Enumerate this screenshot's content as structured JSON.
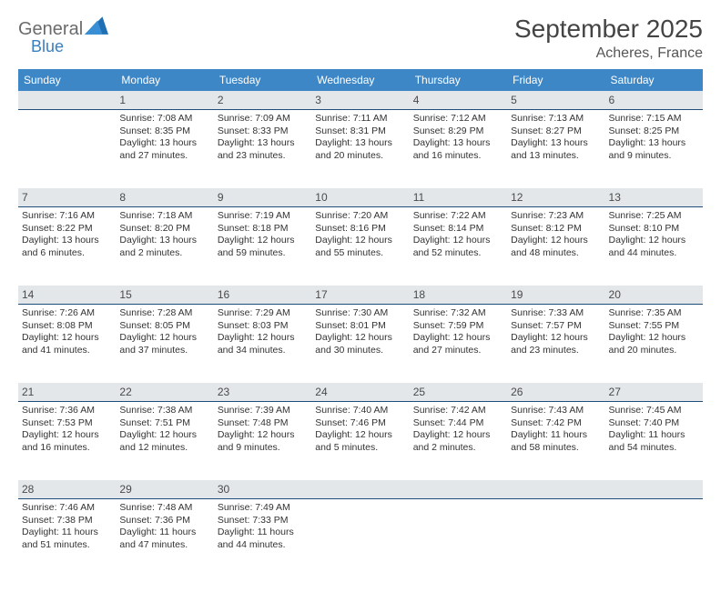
{
  "brand": {
    "word1": "General",
    "word2": "Blue",
    "logo_color": "#1e6fb4"
  },
  "header": {
    "month_title": "September 2025",
    "location": "Acheres, France"
  },
  "colors": {
    "dow_bg": "#3d87c7",
    "dow_text": "#ffffff",
    "daynum_bg": "#e3e7ea",
    "daynum_border": "#1e4e79",
    "text": "#333333"
  },
  "days_of_week": [
    "Sunday",
    "Monday",
    "Tuesday",
    "Wednesday",
    "Thursday",
    "Friday",
    "Saturday"
  ],
  "weeks": [
    [
      {
        "num": "",
        "sunrise": "",
        "sunset": "",
        "daylight": ""
      },
      {
        "num": "1",
        "sunrise": "Sunrise: 7:08 AM",
        "sunset": "Sunset: 8:35 PM",
        "daylight": "Daylight: 13 hours and 27 minutes."
      },
      {
        "num": "2",
        "sunrise": "Sunrise: 7:09 AM",
        "sunset": "Sunset: 8:33 PM",
        "daylight": "Daylight: 13 hours and 23 minutes."
      },
      {
        "num": "3",
        "sunrise": "Sunrise: 7:11 AM",
        "sunset": "Sunset: 8:31 PM",
        "daylight": "Daylight: 13 hours and 20 minutes."
      },
      {
        "num": "4",
        "sunrise": "Sunrise: 7:12 AM",
        "sunset": "Sunset: 8:29 PM",
        "daylight": "Daylight: 13 hours and 16 minutes."
      },
      {
        "num": "5",
        "sunrise": "Sunrise: 7:13 AM",
        "sunset": "Sunset: 8:27 PM",
        "daylight": "Daylight: 13 hours and 13 minutes."
      },
      {
        "num": "6",
        "sunrise": "Sunrise: 7:15 AM",
        "sunset": "Sunset: 8:25 PM",
        "daylight": "Daylight: 13 hours and 9 minutes."
      }
    ],
    [
      {
        "num": "7",
        "sunrise": "Sunrise: 7:16 AM",
        "sunset": "Sunset: 8:22 PM",
        "daylight": "Daylight: 13 hours and 6 minutes."
      },
      {
        "num": "8",
        "sunrise": "Sunrise: 7:18 AM",
        "sunset": "Sunset: 8:20 PM",
        "daylight": "Daylight: 13 hours and 2 minutes."
      },
      {
        "num": "9",
        "sunrise": "Sunrise: 7:19 AM",
        "sunset": "Sunset: 8:18 PM",
        "daylight": "Daylight: 12 hours and 59 minutes."
      },
      {
        "num": "10",
        "sunrise": "Sunrise: 7:20 AM",
        "sunset": "Sunset: 8:16 PM",
        "daylight": "Daylight: 12 hours and 55 minutes."
      },
      {
        "num": "11",
        "sunrise": "Sunrise: 7:22 AM",
        "sunset": "Sunset: 8:14 PM",
        "daylight": "Daylight: 12 hours and 52 minutes."
      },
      {
        "num": "12",
        "sunrise": "Sunrise: 7:23 AM",
        "sunset": "Sunset: 8:12 PM",
        "daylight": "Daylight: 12 hours and 48 minutes."
      },
      {
        "num": "13",
        "sunrise": "Sunrise: 7:25 AM",
        "sunset": "Sunset: 8:10 PM",
        "daylight": "Daylight: 12 hours and 44 minutes."
      }
    ],
    [
      {
        "num": "14",
        "sunrise": "Sunrise: 7:26 AM",
        "sunset": "Sunset: 8:08 PM",
        "daylight": "Daylight: 12 hours and 41 minutes."
      },
      {
        "num": "15",
        "sunrise": "Sunrise: 7:28 AM",
        "sunset": "Sunset: 8:05 PM",
        "daylight": "Daylight: 12 hours and 37 minutes."
      },
      {
        "num": "16",
        "sunrise": "Sunrise: 7:29 AM",
        "sunset": "Sunset: 8:03 PM",
        "daylight": "Daylight: 12 hours and 34 minutes."
      },
      {
        "num": "17",
        "sunrise": "Sunrise: 7:30 AM",
        "sunset": "Sunset: 8:01 PM",
        "daylight": "Daylight: 12 hours and 30 minutes."
      },
      {
        "num": "18",
        "sunrise": "Sunrise: 7:32 AM",
        "sunset": "Sunset: 7:59 PM",
        "daylight": "Daylight: 12 hours and 27 minutes."
      },
      {
        "num": "19",
        "sunrise": "Sunrise: 7:33 AM",
        "sunset": "Sunset: 7:57 PM",
        "daylight": "Daylight: 12 hours and 23 minutes."
      },
      {
        "num": "20",
        "sunrise": "Sunrise: 7:35 AM",
        "sunset": "Sunset: 7:55 PM",
        "daylight": "Daylight: 12 hours and 20 minutes."
      }
    ],
    [
      {
        "num": "21",
        "sunrise": "Sunrise: 7:36 AM",
        "sunset": "Sunset: 7:53 PM",
        "daylight": "Daylight: 12 hours and 16 minutes."
      },
      {
        "num": "22",
        "sunrise": "Sunrise: 7:38 AM",
        "sunset": "Sunset: 7:51 PM",
        "daylight": "Daylight: 12 hours and 12 minutes."
      },
      {
        "num": "23",
        "sunrise": "Sunrise: 7:39 AM",
        "sunset": "Sunset: 7:48 PM",
        "daylight": "Daylight: 12 hours and 9 minutes."
      },
      {
        "num": "24",
        "sunrise": "Sunrise: 7:40 AM",
        "sunset": "Sunset: 7:46 PM",
        "daylight": "Daylight: 12 hours and 5 minutes."
      },
      {
        "num": "25",
        "sunrise": "Sunrise: 7:42 AM",
        "sunset": "Sunset: 7:44 PM",
        "daylight": "Daylight: 12 hours and 2 minutes."
      },
      {
        "num": "26",
        "sunrise": "Sunrise: 7:43 AM",
        "sunset": "Sunset: 7:42 PM",
        "daylight": "Daylight: 11 hours and 58 minutes."
      },
      {
        "num": "27",
        "sunrise": "Sunrise: 7:45 AM",
        "sunset": "Sunset: 7:40 PM",
        "daylight": "Daylight: 11 hours and 54 minutes."
      }
    ],
    [
      {
        "num": "28",
        "sunrise": "Sunrise: 7:46 AM",
        "sunset": "Sunset: 7:38 PM",
        "daylight": "Daylight: 11 hours and 51 minutes."
      },
      {
        "num": "29",
        "sunrise": "Sunrise: 7:48 AM",
        "sunset": "Sunset: 7:36 PM",
        "daylight": "Daylight: 11 hours and 47 minutes."
      },
      {
        "num": "30",
        "sunrise": "Sunrise: 7:49 AM",
        "sunset": "Sunset: 7:33 PM",
        "daylight": "Daylight: 11 hours and 44 minutes."
      },
      {
        "num": "",
        "sunrise": "",
        "sunset": "",
        "daylight": ""
      },
      {
        "num": "",
        "sunrise": "",
        "sunset": "",
        "daylight": ""
      },
      {
        "num": "",
        "sunrise": "",
        "sunset": "",
        "daylight": ""
      },
      {
        "num": "",
        "sunrise": "",
        "sunset": "",
        "daylight": ""
      }
    ]
  ]
}
